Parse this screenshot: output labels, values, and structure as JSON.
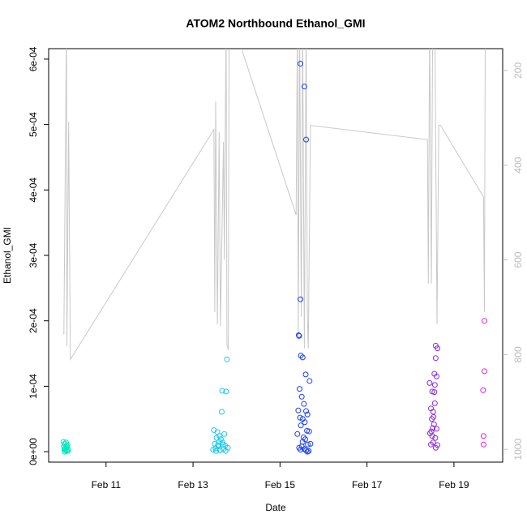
{
  "chart_data": {
    "type": "scatter",
    "title": "ATOM2 Northbound Ethanol_GMI",
    "x_label": "Date",
    "y_label": "Ethanol_GMI",
    "xlim": [
      9.68,
      20.12
    ],
    "xticks": [
      {
        "value": 11,
        "label": "Feb 11"
      },
      {
        "value": 13,
        "label": "Feb 13"
      },
      {
        "value": 15,
        "label": "Feb 15"
      },
      {
        "value": 17,
        "label": "Feb 17"
      },
      {
        "value": 19,
        "label": "Feb 19"
      }
    ],
    "ylim": [
      -1.6e-05,
      0.000616
    ],
    "yticks": [
      {
        "value": 0,
        "label": "0e+00"
      },
      {
        "value": 0.0001,
        "label": "1e-04"
      },
      {
        "value": 0.0002,
        "label": "2e-04"
      },
      {
        "value": 0.0003,
        "label": "3e-04"
      },
      {
        "value": 0.0004,
        "label": "4e-04"
      },
      {
        "value": 0.0005,
        "label": "5e-04"
      },
      {
        "value": 0.0006,
        "label": "6e-04"
      }
    ],
    "y2lim": [
      1027,
      154
    ],
    "y2ticks": [
      200,
      400,
      600,
      800,
      1000
    ],
    "y2_color": "#bbbbbb",
    "series": [
      {
        "color": "#00e8c0",
        "x": [
          10.02,
          10.03,
          10.04,
          10.05,
          10.06,
          10.07,
          10.08,
          10.09,
          10.1,
          10.11,
          10.12,
          10.13,
          10.05,
          10.09
        ],
        "values": [
          1.5e-05,
          8e-06,
          3e-06,
          1.2e-05,
          5e-06,
          2e-06,
          1.4e-05,
          6e-06,
          1e-06,
          1e-05,
          4e-06,
          2e-06,
          0,
          9e-06
        ]
      },
      {
        "color": "#1ac8f0",
        "x": [
          13.48,
          13.5,
          13.52,
          13.54,
          13.56,
          13.58,
          13.6,
          13.62,
          13.64,
          13.66,
          13.67,
          13.69,
          13.7,
          13.72,
          13.74,
          13.76,
          13.78,
          13.8,
          13.46,
          13.53,
          13.61,
          13.68,
          13.75,
          13.57
        ],
        "values": [
          3.3e-05,
          1.2e-05,
          5e-06,
          2.1e-05,
          3e-05,
          8e-06,
          1.5e-05,
          2e-06,
          1.9e-05,
          6.1e-05,
          9.3e-05,
          1.1e-05,
          4e-06,
          2.7e-05,
          9e-06,
          9.2e-05,
          0.000141,
          6e-06,
          3e-06,
          1e-06,
          2.4e-05,
          1.4e-05,
          1e-06,
          1e-05
        ]
      },
      {
        "color": "#1a40f0",
        "x": [
          15.43,
          15.44,
          15.47,
          15.47,
          15.48,
          15.52,
          15.56,
          15.6,
          15.59,
          15.68,
          15.45,
          15.5,
          15.55,
          15.42,
          15.6,
          15.63,
          15.46,
          15.52,
          15.57,
          15.48,
          15.62,
          15.67,
          15.4,
          15.54,
          15.58,
          15.64,
          15.5,
          15.44,
          15.56,
          15.6,
          15.66,
          15.7,
          15.52,
          15.47,
          15.63
        ],
        "values": [
          0.000178,
          0.000177,
          0.000593,
          0.000233,
          0.000147,
          0.000144,
          0.000558,
          0.000477,
          0.000118,
          0.000108,
          9.6e-05,
          8.4e-05,
          7.3e-05,
          6.3e-05,
          6.2e-05,
          5.7e-05,
          5.2e-05,
          5e-05,
          4.5e-05,
          4e-05,
          3.2e-05,
          3.1e-05,
          2.7e-05,
          2.2e-05,
          1.9e-05,
          1.1e-05,
          8e-06,
          6e-06,
          4e-06,
          2e-06,
          1e-06,
          1.2e-05,
          1.5e-05,
          3e-06,
          0
        ]
      },
      {
        "color": "#8a2be2",
        "x": [
          18.44,
          18.5,
          18.55,
          18.58,
          18.62,
          18.58,
          18.6,
          18.56,
          18.56,
          18.47,
          18.52,
          18.53,
          18.49,
          18.54,
          18.51,
          18.6,
          18.45,
          18.5,
          18.57,
          18.47,
          18.52,
          18.62,
          18.58,
          18.55,
          18.48
        ],
        "values": [
          0.000105,
          9.2e-05,
          0.000119,
          0.000162,
          0.000158,
          0.000143,
          0.000115,
          0.000102,
          7.4e-05,
          6.6e-05,
          6.1e-05,
          5.3e-05,
          5e-05,
          4.2e-05,
          3.6e-05,
          3.5e-05,
          2.8e-05,
          2.4e-05,
          2.1e-05,
          1.1e-05,
          1.4e-05,
          1e-05,
          6e-06,
          9.1e-05,
          3.1e-05
        ]
      },
      {
        "color": "#e020e0",
        "x": [
          19.7,
          19.7,
          19.67,
          19.68,
          19.68
        ],
        "values": [
          0.0002,
          0.000123,
          9.4e-05,
          2.4e-05,
          1.1e-05
        ]
      },
      {
        "color": "#c8c8c8",
        "axis": "y2",
        "type": "line",
        "x": [
          10.03,
          10.09,
          10.1,
          10.14,
          10.18,
          13.48,
          13.5,
          13.52,
          13.56,
          13.6,
          13.63,
          13.7,
          13.72,
          13.76,
          13.78,
          13.81,
          13.83,
          14.1,
          15.37,
          15.4,
          15.42,
          15.45,
          15.49,
          15.52,
          15.56,
          15.6,
          15.63,
          15.65,
          15.7,
          18.39,
          18.41,
          18.44,
          18.48,
          18.51,
          18.56,
          18.61,
          18.65,
          18.69,
          19.68,
          19.7,
          19.72
        ],
        "values": [
          758,
          100,
          782,
          308,
          810,
          325,
          710,
          265,
          736,
          330,
          740,
          351,
          600,
          100,
          779,
          790,
          100,
          150,
          505,
          100,
          770,
          100,
          720,
          100,
          787,
          100,
          720,
          787,
          316,
          346,
          650,
          100,
          650,
          100,
          100,
          736,
          316,
          316,
          467,
          710,
          100
        ]
      }
    ]
  }
}
